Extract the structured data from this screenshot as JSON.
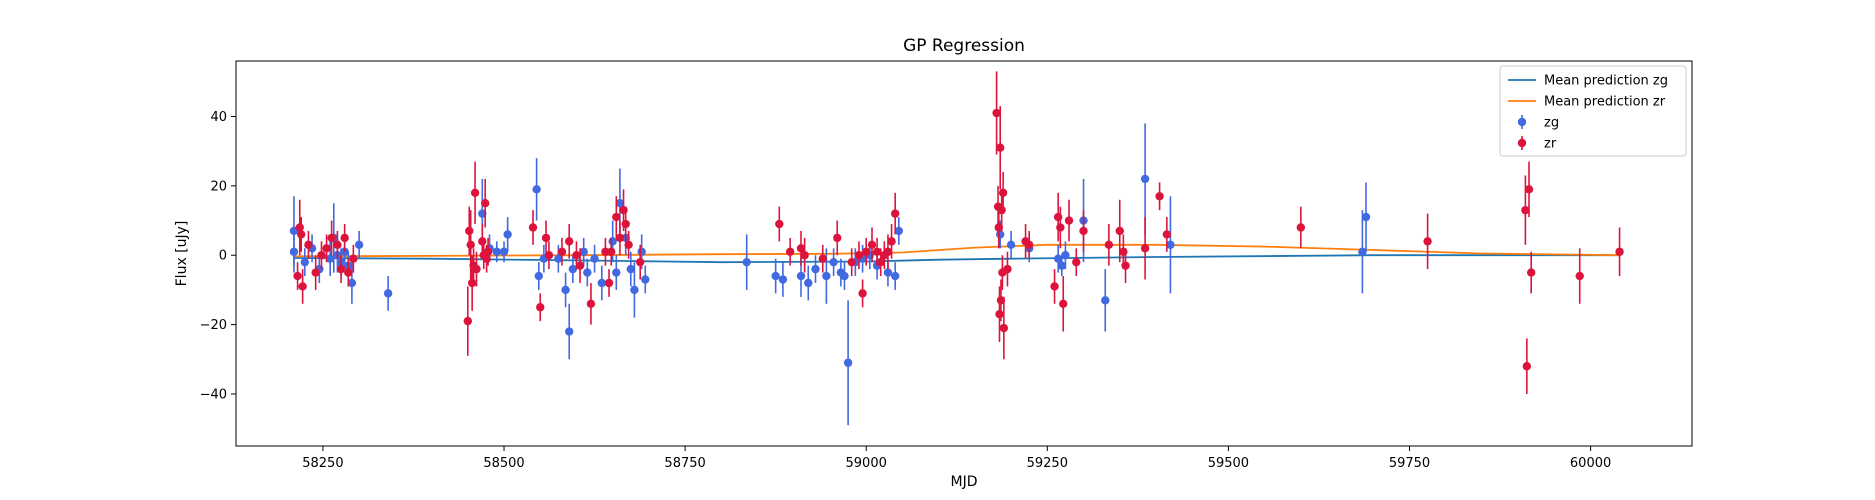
{
  "chart_data": {
    "type": "scatter",
    "title": "GP Regression",
    "xlabel": "MJD",
    "ylabel": "Flux [uJy]",
    "xlim": [
      58130,
      60140
    ],
    "ylim": [
      -55,
      56
    ],
    "xticks": [
      58250,
      58500,
      58750,
      59000,
      59250,
      59500,
      59750,
      60000
    ],
    "yticks": [
      -40,
      -20,
      0,
      20,
      40
    ],
    "grid": false,
    "legend_position": "top-right",
    "lines": [
      {
        "name": "Mean prediction zg",
        "color": "#1f77b4",
        "x": [
          58210,
          58400,
          58600,
          58800,
          59000,
          59100,
          59200,
          59400,
          59700,
          59900,
          60040
        ],
        "y": [
          -0.8,
          -1.0,
          -1.5,
          -2.0,
          -1.8,
          -1.3,
          -1.0,
          -0.5,
          0.0,
          0.0,
          0.0
        ]
      },
      {
        "name": "Mean prediction zr",
        "color": "#ff7f0e",
        "x": [
          58210,
          58400,
          58600,
          58800,
          58950,
          59050,
          59150,
          59250,
          59400,
          59550,
          59700,
          59850,
          60040
        ],
        "y": [
          -0.3,
          -0.2,
          0.0,
          0.3,
          0.4,
          0.8,
          2.2,
          3.0,
          3.0,
          2.5,
          1.5,
          0.5,
          0.0
        ]
      }
    ],
    "series": [
      {
        "name": "zg",
        "color": "#4169e1",
        "points": [
          [
            58210,
            7,
            10
          ],
          [
            58210,
            1,
            6
          ],
          [
            58225,
            -2,
            4
          ],
          [
            58235,
            2,
            4
          ],
          [
            58245,
            -4,
            4
          ],
          [
            58260,
            -1,
            5
          ],
          [
            58265,
            5,
            10
          ],
          [
            58270,
            0,
            5
          ],
          [
            58275,
            -2,
            4
          ],
          [
            58280,
            1,
            5
          ],
          [
            58285,
            -3,
            4
          ],
          [
            58290,
            -8,
            6
          ],
          [
            58300,
            3,
            4
          ],
          [
            58340,
            -11,
            5
          ],
          [
            58470,
            12,
            10
          ],
          [
            58480,
            2,
            4
          ],
          [
            58490,
            1,
            3
          ],
          [
            58500,
            1,
            3
          ],
          [
            58505,
            6,
            5
          ],
          [
            58545,
            19,
            9
          ],
          [
            58548,
            -6,
            4
          ],
          [
            58555,
            -1,
            4
          ],
          [
            58575,
            -1,
            4
          ],
          [
            58585,
            -10,
            5
          ],
          [
            58590,
            -22,
            8
          ],
          [
            58595,
            -4,
            4
          ],
          [
            58610,
            1,
            4
          ],
          [
            58615,
            -5,
            4
          ],
          [
            58625,
            -1,
            4
          ],
          [
            58635,
            -8,
            5
          ],
          [
            58650,
            4,
            6
          ],
          [
            58655,
            -5,
            5
          ],
          [
            58660,
            15,
            10
          ],
          [
            58668,
            5,
            5
          ],
          [
            58675,
            -4,
            5
          ],
          [
            58680,
            -10,
            8
          ],
          [
            58690,
            1,
            5
          ],
          [
            58695,
            -7,
            4
          ],
          [
            58835,
            -2,
            8
          ],
          [
            58875,
            -6,
            5
          ],
          [
            58885,
            -7,
            5
          ],
          [
            58910,
            -6,
            6
          ],
          [
            58920,
            -8,
            5
          ],
          [
            58930,
            -4,
            4
          ],
          [
            58945,
            -6,
            8
          ],
          [
            58955,
            -2,
            4
          ],
          [
            58965,
            -5,
            4
          ],
          [
            58970,
            -6,
            4
          ],
          [
            58975,
            -31,
            18
          ],
          [
            58985,
            -2,
            4
          ],
          [
            58995,
            -1,
            4
          ],
          [
            59005,
            0,
            4
          ],
          [
            59015,
            -3,
            4
          ],
          [
            59030,
            -5,
            4
          ],
          [
            59040,
            -6,
            4
          ],
          [
            59045,
            7,
            4
          ],
          [
            59185,
            6,
            4
          ],
          [
            59200,
            3,
            4
          ],
          [
            59225,
            2,
            4
          ],
          [
            59265,
            -1,
            4
          ],
          [
            59270,
            -3,
            3
          ],
          [
            59275,
            0,
            4
          ],
          [
            59300,
            10,
            12
          ],
          [
            59330,
            -13,
            9
          ],
          [
            59385,
            22,
            16
          ],
          [
            59420,
            3,
            14
          ],
          [
            59685,
            1,
            12
          ],
          [
            59690,
            11,
            10
          ]
        ]
      },
      {
        "name": "zr",
        "color": "#dc143c",
        "points": [
          [
            58215,
            -6,
            4
          ],
          [
            58218,
            8,
            8
          ],
          [
            58220,
            6,
            5
          ],
          [
            58222,
            -9,
            5
          ],
          [
            58230,
            3,
            4
          ],
          [
            58240,
            -5,
            5
          ],
          [
            58248,
            0,
            4
          ],
          [
            58255,
            2,
            4
          ],
          [
            58262,
            5,
            5
          ],
          [
            58270,
            3,
            4
          ],
          [
            58275,
            -4,
            4
          ],
          [
            58280,
            5,
            4
          ],
          [
            58285,
            -5,
            4
          ],
          [
            58292,
            -1,
            4
          ],
          [
            58450,
            -19,
            10
          ],
          [
            58452,
            7,
            7
          ],
          [
            58454,
            3,
            10
          ],
          [
            58456,
            -8,
            8
          ],
          [
            58458,
            -3,
            5
          ],
          [
            58460,
            18,
            9
          ],
          [
            58462,
            -4,
            5
          ],
          [
            58470,
            4,
            5
          ],
          [
            58472,
            0,
            4
          ],
          [
            58474,
            15,
            7
          ],
          [
            58476,
            -1,
            4
          ],
          [
            58478,
            1,
            4
          ],
          [
            58540,
            8,
            5
          ],
          [
            58550,
            -15,
            4
          ],
          [
            58558,
            5,
            5
          ],
          [
            58562,
            0,
            4
          ],
          [
            58580,
            1,
            4
          ],
          [
            58590,
            4,
            5
          ],
          [
            58600,
            0,
            4
          ],
          [
            58605,
            -3,
            5
          ],
          [
            58620,
            -14,
            6
          ],
          [
            58640,
            1,
            4
          ],
          [
            58645,
            -8,
            4
          ],
          [
            58648,
            1,
            4
          ],
          [
            58655,
            11,
            6
          ],
          [
            58660,
            5,
            5
          ],
          [
            58665,
            13,
            6
          ],
          [
            58668,
            9,
            5
          ],
          [
            58672,
            3,
            4
          ],
          [
            58688,
            -2,
            5
          ],
          [
            58880,
            9,
            5
          ],
          [
            58895,
            1,
            4
          ],
          [
            58910,
            2,
            5
          ],
          [
            58915,
            0,
            5
          ],
          [
            58940,
            -1,
            4
          ],
          [
            58960,
            5,
            5
          ],
          [
            58980,
            -2,
            4
          ],
          [
            58990,
            0,
            4
          ],
          [
            58995,
            -11,
            4
          ],
          [
            59000,
            1,
            4
          ],
          [
            59008,
            3,
            5
          ],
          [
            59015,
            1,
            4
          ],
          [
            59020,
            -2,
            4
          ],
          [
            59025,
            0,
            4
          ],
          [
            59030,
            1,
            5
          ],
          [
            59035,
            4,
            5
          ],
          [
            59040,
            12,
            6
          ],
          [
            59180,
            41,
            12
          ],
          [
            59182,
            14,
            6
          ],
          [
            59183,
            8,
            6
          ],
          [
            59184,
            -17,
            8
          ],
          [
            59185,
            31,
            12
          ],
          [
            59186,
            -13,
            6
          ],
          [
            59187,
            13,
            6
          ],
          [
            59188,
            -5,
            5
          ],
          [
            59189,
            18,
            6
          ],
          [
            59190,
            -21,
            9
          ],
          [
            59195,
            -4,
            5
          ],
          [
            59220,
            4,
            5
          ],
          [
            59225,
            3,
            4
          ],
          [
            59260,
            -9,
            5
          ],
          [
            59265,
            11,
            7
          ],
          [
            59268,
            8,
            6
          ],
          [
            59272,
            -14,
            8
          ],
          [
            59280,
            10,
            6
          ],
          [
            59290,
            -2,
            4
          ],
          [
            59300,
            7,
            6
          ],
          [
            59335,
            3,
            6
          ],
          [
            59350,
            7,
            9
          ],
          [
            59355,
            1,
            5
          ],
          [
            59358,
            -3,
            5
          ],
          [
            59385,
            2,
            9
          ],
          [
            59405,
            17,
            4
          ],
          [
            59415,
            6,
            5
          ],
          [
            59600,
            8,
            6
          ],
          [
            59775,
            4,
            8
          ],
          [
            59910,
            13,
            10
          ],
          [
            59912,
            -32,
            8
          ],
          [
            59915,
            19,
            8
          ],
          [
            59918,
            -5,
            6
          ],
          [
            59985,
            -6,
            8
          ],
          [
            60040,
            1,
            7
          ]
        ]
      }
    ]
  }
}
